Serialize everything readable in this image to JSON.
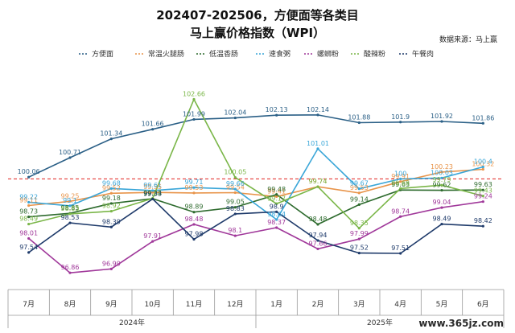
{
  "title_line1": "202407-202506，方便面等各类目",
  "title_line2": "马上赢价格指数（WPI）",
  "source": "数据来源：马上赢",
  "watermark": "www.365jz.com",
  "chart_data": {
    "type": "line",
    "title": "202407-202506，方便面等各类目 马上赢价格指数（WPI）",
    "categories": [
      "7月",
      "8月",
      "9月",
      "10月",
      "11月",
      "12月",
      "1月",
      "2月",
      "3月",
      "4月",
      "5月",
      "6月"
    ],
    "years": [
      {
        "label": "2024年",
        "start": 0,
        "end": 5
      },
      {
        "label": "2025年",
        "start": 6,
        "end": 11
      }
    ],
    "reference_line": 100,
    "ylim": [
      96.3,
      103.4
    ],
    "series": [
      {
        "name": "方便面",
        "color": "#2a5f86",
        "values": [
          100.06,
          100.71,
          101.34,
          101.66,
          101.99,
          102.04,
          102.13,
          102.14,
          101.88,
          101.9,
          101.92,
          101.86
        ],
        "labels": [
          "100.06",
          "100.71",
          "101.34",
          "101.66",
          "101.99",
          "102.04",
          "102.13",
          "102.14",
          "101.88",
          "101.9",
          "101.92",
          "101.86"
        ]
      },
      {
        "name": "常温火腿肠",
        "color": "#e8944a",
        "values": [
          99.11,
          99.25,
          99.52,
          99.55,
          99.53,
          99.54,
          99.41,
          99.74,
          99.53,
          99.91,
          100.23,
          100.32
        ],
        "labels": [
          "99.11",
          "99.25",
          "99.52",
          "99.55",
          "99.53",
          "99.54",
          "99.41",
          "99.74",
          "99.53",
          "99.91",
          "100.23",
          "100.32"
        ]
      },
      {
        "name": "低温香肠",
        "color": "#2e6b2e",
        "values": [
          98.73,
          98.85,
          99.18,
          99.34,
          98.89,
          99.05,
          99.48,
          98.48,
          99.14,
          99.63,
          99.62,
          99.63
        ],
        "labels": [
          "98.73",
          "98.85",
          "99.18",
          "99.34",
          "98.89",
          "99.05",
          "99.48",
          "98.48",
          "99.14",
          "99.63",
          "99.62",
          "99.63"
        ]
      },
      {
        "name": "速食粥",
        "color": "#3aa6d8",
        "values": [
          99.22,
          99.1,
          99.68,
          99.61,
          99.71,
          99.66,
          98.64,
          101.01,
          99.67,
          100.0,
          100.03,
          100.4
        ],
        "labels": [
          "99.22",
          "99.1",
          "99.68",
          "99.61",
          "99.71",
          "99.66",
          "98.64",
          "101.01",
          "99.67",
          "100",
          "100.03",
          "100.4"
        ]
      },
      {
        "name": "螺蛳粉",
        "color": "#a0389a",
        "values": [
          98.01,
          96.86,
          96.99,
          97.91,
          98.48,
          98.1,
          98.37,
          97.66,
          97.99,
          98.74,
          99.04,
          99.24
        ],
        "labels": [
          "98.01",
          "96.86",
          "96.99",
          "97.91",
          "98.48",
          "98.1",
          "98.37",
          "97.66",
          "97.99",
          "98.74",
          "99.04",
          "99.24"
        ]
      },
      {
        "name": "酸辣粉",
        "color": "#7ab648",
        "values": [
          98.49,
          98.83,
          98.92,
          99.35,
          102.66,
          100.05,
          99.17,
          99.74,
          98.35,
          99.68,
          99.79,
          99.43
        ],
        "labels": [
          "98.49",
          "98.83",
          "98.92",
          "99.35",
          "102.66",
          "100.05",
          "99.17",
          "99.74",
          "98.35",
          "99.68",
          "99.79",
          "99.43"
        ]
      },
      {
        "name": "午餐肉",
        "color": "#1e3a6a",
        "values": [
          97.54,
          98.53,
          98.39,
          99.33,
          97.98,
          98.83,
          98.9,
          97.94,
          97.52,
          97.51,
          98.49,
          98.42
        ],
        "labels": [
          "97.54",
          "98.53",
          "98.39",
          "99.33",
          "97.98",
          "98.83",
          "98.9",
          "97.94",
          "97.52",
          "97.51",
          "98.49",
          "98.42"
        ]
      }
    ]
  }
}
